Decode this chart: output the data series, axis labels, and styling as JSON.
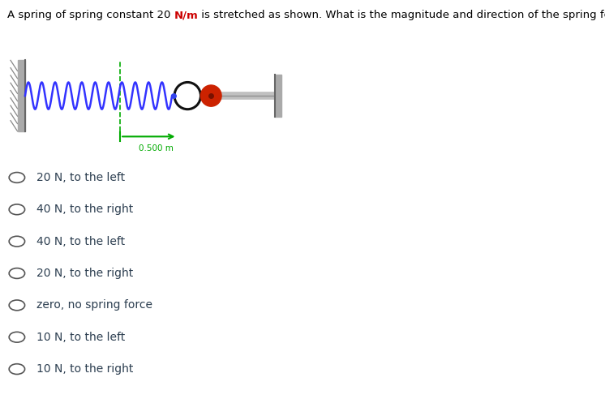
{
  "title_part1": "A spring of spring constant 20 ",
  "title_N_m": "N/m",
  "title_part2": " is stretched as shown. What is the magnitude and direction of the spring force?",
  "title_color_normal": "#000000",
  "title_color_highlight": "#cc0000",
  "title_fontsize": 9.5,
  "options": [
    "20 N, to the left",
    "40 N, to the right",
    "40 N, to the left",
    "20 N, to the right",
    "zero, no spring force",
    "10 N, to the left",
    "10 N, to the right"
  ],
  "option_color": "#2c3e50",
  "option_fontsize": 10,
  "spring_color": "#3333ff",
  "wall_color": "#aaaaaa",
  "measurement_color": "#00aa00",
  "measurement_label": "0.500 m",
  "bg_color": "#ffffff"
}
